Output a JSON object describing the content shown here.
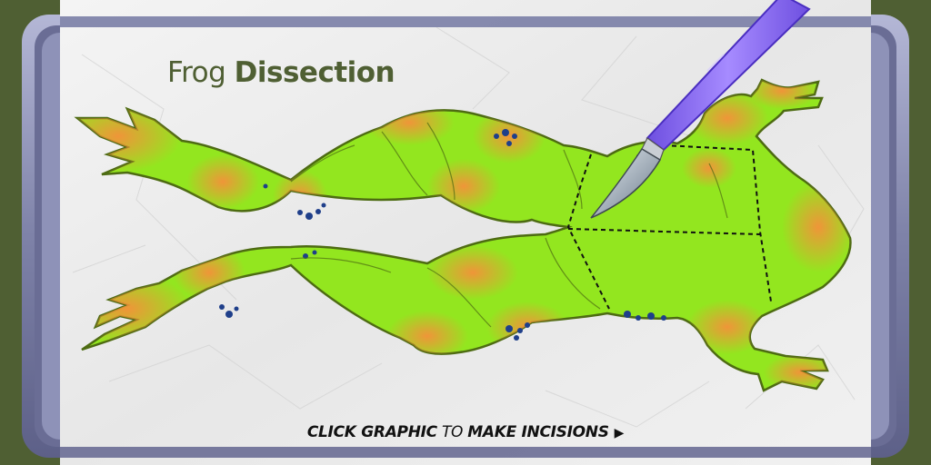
{
  "title": {
    "prefix": "Frog",
    "emphasis": "Dissection"
  },
  "instruction": {
    "part1": "CLICK GRAPHIC",
    "part2": "TO",
    "part3": "MAKE INCISIONS",
    "arrow_icon": "play-triangle-icon"
  },
  "colors": {
    "background": "#4f5f33",
    "tray_frame": "#8f93b8",
    "paper": "#efefef",
    "frog_green": "#93e61f",
    "frog_orange": "#f39a3a",
    "frog_outline": "#4d6b12",
    "spots": "#1f3f8a",
    "scalpel": "#8c6cf0"
  },
  "icons": [
    "scalpel-icon",
    "play-triangle-icon"
  ]
}
